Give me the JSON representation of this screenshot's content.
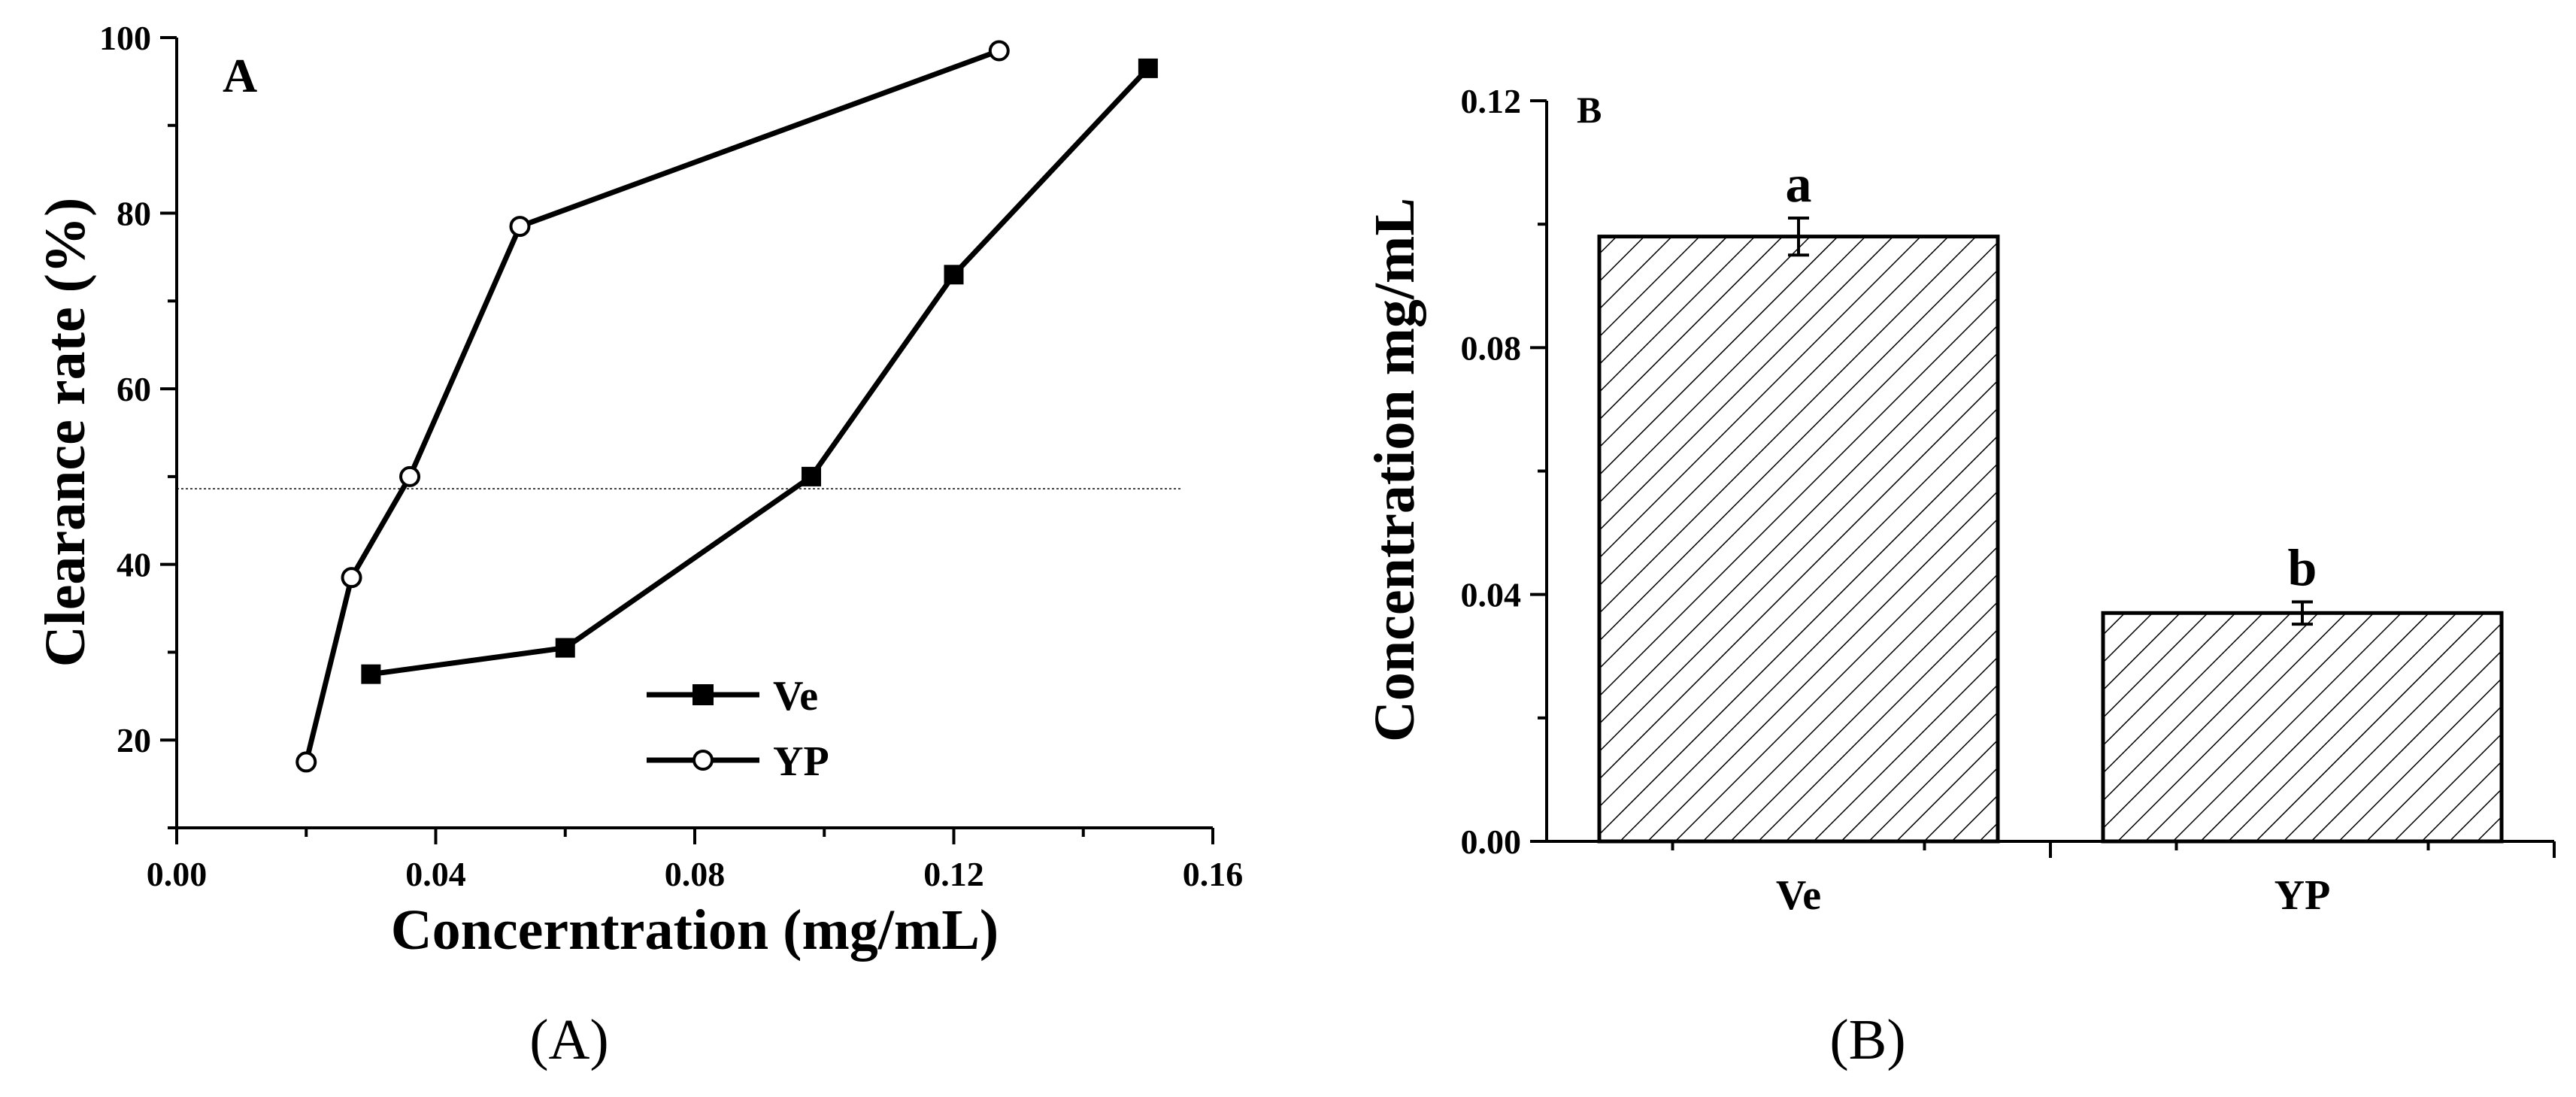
{
  "chart_data": [
    {
      "type": "line",
      "panel_label": "A",
      "caption": "(A)",
      "xlabel": "Concerntration (mg/mL)",
      "ylabel": "Clearance rate (%)",
      "xlim": [
        0,
        0.16
      ],
      "ylim": [
        10,
        100
      ],
      "xticks": [
        "0.00",
        "0.04",
        "0.08",
        "0.12",
        "0.16"
      ],
      "yticks": [
        "20",
        "40",
        "60",
        "80",
        "100"
      ],
      "reference_line_y": 50,
      "legend_position": "bottom-center",
      "series": [
        {
          "name": "Ve",
          "marker": "filled-square",
          "x": [
            0.03,
            0.06,
            0.098,
            0.12,
            0.15
          ],
          "y": [
            27.5,
            30.5,
            50,
            73,
            96.5
          ]
        },
        {
          "name": "YP",
          "marker": "open-circle",
          "x": [
            0.02,
            0.027,
            0.036,
            0.053,
            0.127
          ],
          "y": [
            17.5,
            38.5,
            50,
            78.5,
            98.5
          ]
        }
      ]
    },
    {
      "type": "bar",
      "panel_label": "B",
      "caption": "(B)",
      "xlabel": "",
      "ylabel": "Concentration mg/mL",
      "ylim": [
        0,
        0.12
      ],
      "yticks": [
        "0.00",
        "0.04",
        "0.08",
        "0.12"
      ],
      "categories": [
        "Ve",
        "YP"
      ],
      "values": [
        0.098,
        0.037
      ],
      "errors": [
        0.003,
        0.0018
      ],
      "significance": [
        "a",
        "b"
      ],
      "fill": "diagonal-hatch"
    }
  ]
}
